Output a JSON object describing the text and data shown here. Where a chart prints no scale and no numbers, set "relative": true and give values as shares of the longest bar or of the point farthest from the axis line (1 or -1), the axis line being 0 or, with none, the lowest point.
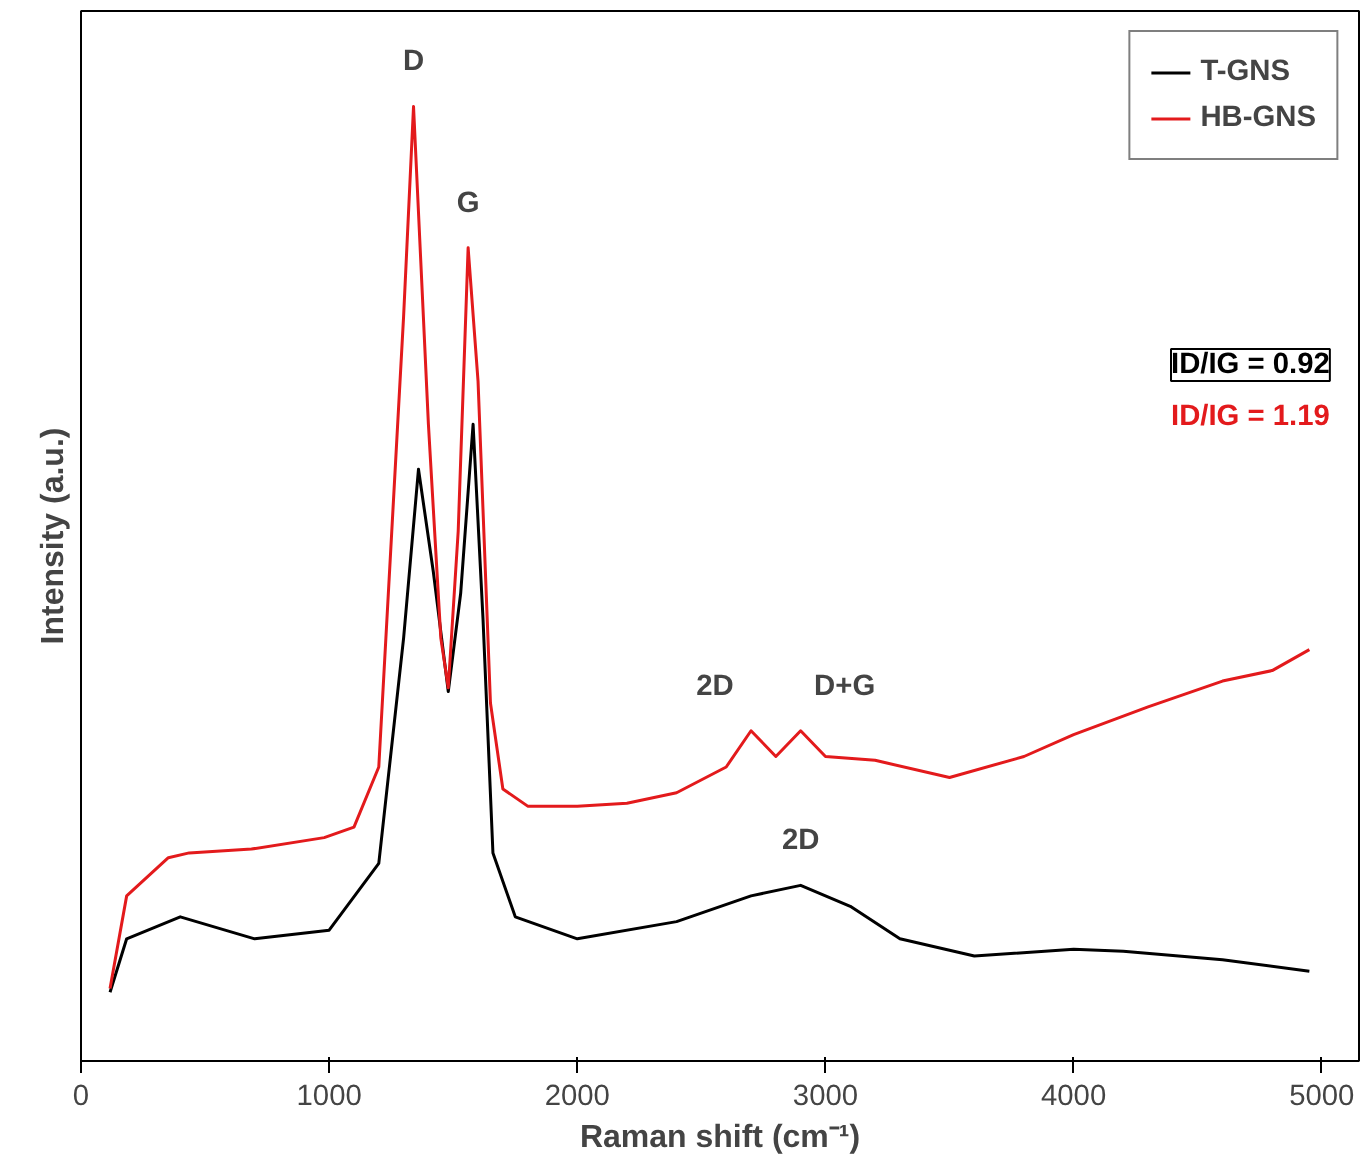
{
  "chart_data": {
    "type": "line",
    "xlabel": "Raman shift (cm⁻¹)",
    "ylabel": "Intensity (a.u.)",
    "relative": true,
    "xlim": [
      0,
      5150
    ],
    "xticks": [
      0,
      1000,
      2000,
      3000,
      4000,
      5000
    ],
    "legend": "top right",
    "grid": false,
    "tick_labels": "x",
    "series": [
      {
        "name": "T-GNS",
        "color": "#000000",
        "x": [
          117,
          184,
          400,
          700,
          1000,
          1200,
          1300,
          1360,
          1420,
          1480,
          1530,
          1580,
          1620,
          1660,
          1750,
          2000,
          2400,
          2700,
          2900,
          3100,
          3300,
          3600,
          4000,
          4200,
          4600,
          4950
        ],
        "values": [
          0.072,
          0.128,
          0.151,
          0.128,
          0.137,
          0.207,
          0.443,
          0.62,
          0.512,
          0.387,
          0.49,
          0.667,
          0.463,
          0.218,
          0.151,
          0.128,
          0.146,
          0.173,
          0.184,
          0.162,
          0.128,
          0.11,
          0.117,
          0.115,
          0.106,
          0.094
        ]
      },
      {
        "name": "HB-GNS",
        "color": "#e31a1c",
        "x": [
          117,
          184,
          352,
          436,
          687,
          980,
          1100,
          1200,
          1300,
          1340,
          1400,
          1450,
          1480,
          1520,
          1560,
          1600,
          1650,
          1700,
          1800,
          2000,
          2200,
          2400,
          2600,
          2700,
          2800,
          2900,
          3000,
          3200,
          3500,
          3800,
          4000,
          4300,
          4600,
          4800,
          4950
        ],
        "values": [
          0.076,
          0.173,
          0.213,
          0.218,
          0.222,
          0.234,
          0.245,
          0.308,
          0.78,
          1.0,
          0.667,
          0.443,
          0.391,
          0.555,
          0.852,
          0.712,
          0.375,
          0.285,
          0.267,
          0.267,
          0.27,
          0.281,
          0.308,
          0.346,
          0.319,
          0.346,
          0.319,
          0.315,
          0.297,
          0.319,
          0.342,
          0.371,
          0.398,
          0.409,
          0.431
        ]
      }
    ],
    "annotations": [
      {
        "text": "D",
        "x": 1340,
        "y": 1.0
      },
      {
        "text": "G",
        "x": 1560,
        "y": 0.852
      },
      {
        "text": "2D",
        "x": 2700,
        "y": 0.346
      },
      {
        "text": "D+G",
        "x": 2900,
        "y": 0.346
      },
      {
        "text": "2D",
        "x": 2900,
        "y": 0.184
      },
      "ID/IG = 0.92",
      "ID/IG = 1.19"
    ]
  }
}
